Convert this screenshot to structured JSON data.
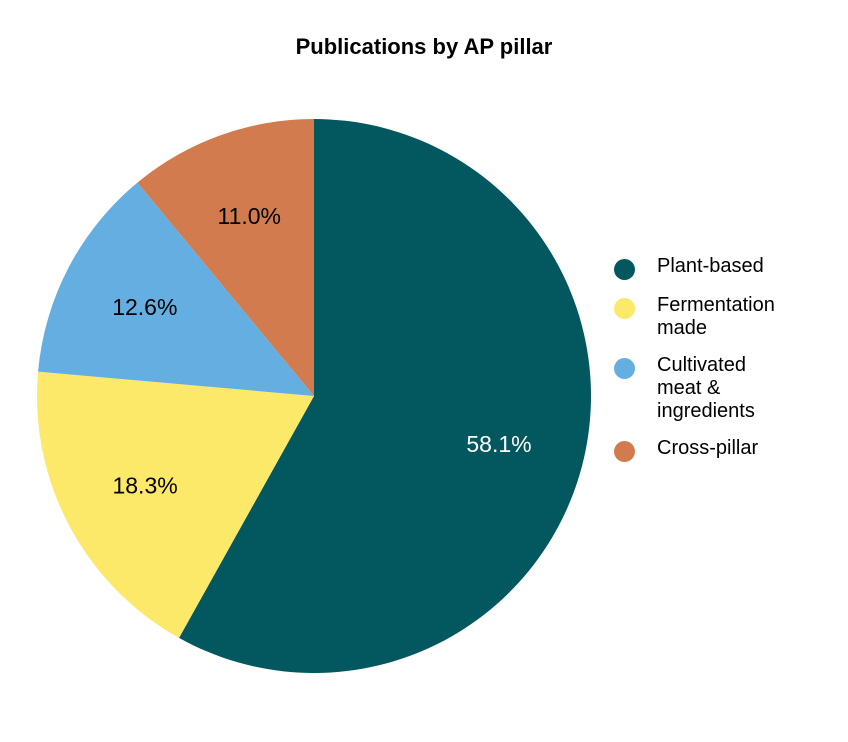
{
  "chart_data": {
    "type": "pie",
    "title": "Publications by AP pillar",
    "legend_placement": "right",
    "slices": [
      {
        "name": "Plant-based",
        "value": 58.1,
        "label": "58.1%",
        "color": "#03575f",
        "label_color": "#ffffff"
      },
      {
        "name": "Fermentation made",
        "value": 18.3,
        "label": "18.3%",
        "color": "#fce96a",
        "label_color": "#000000"
      },
      {
        "name": "Cultivated meat & ingredients",
        "value": 12.6,
        "label": "12.6%",
        "color": "#65aee2",
        "label_color": "#000000"
      },
      {
        "name": "Cross-pillar",
        "value": 11.0,
        "label": "11.0%",
        "color": "#d27b4e",
        "label_color": "#000000"
      }
    ]
  }
}
